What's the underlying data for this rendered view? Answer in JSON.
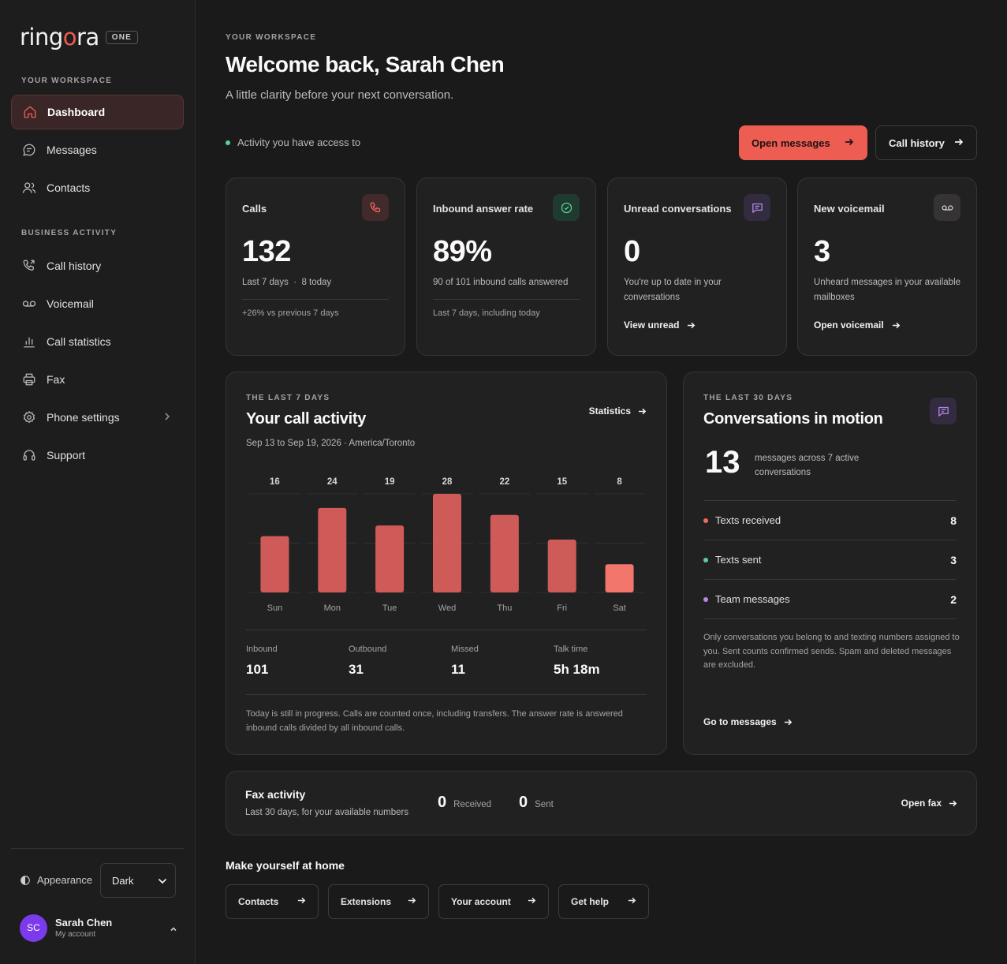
{
  "brand": {
    "name_prefix": "ring",
    "name_o": "o",
    "name_suffix": "ra",
    "badge": "ONE",
    "accent": "#ed5d52"
  },
  "sidebar": {
    "section_workspace": "YOUR WORKSPACE",
    "section_business": "BUSINESS ACTIVITY",
    "items": [
      {
        "label": "Dashboard",
        "icon": "home-icon",
        "active": true
      },
      {
        "label": "Messages",
        "icon": "chat-icon"
      },
      {
        "label": "Contacts",
        "icon": "people-icon"
      },
      {
        "label": "Call history",
        "icon": "phone-history-icon"
      },
      {
        "label": "Voicemail",
        "icon": "voicemail-icon"
      },
      {
        "label": "Call statistics",
        "icon": "bar-chart-icon"
      },
      {
        "label": "Fax",
        "icon": "printer-icon"
      },
      {
        "label": "Phone settings",
        "icon": "gear-icon"
      },
      {
        "label": "Support",
        "icon": "headset-icon"
      }
    ],
    "appearance_label": "Appearance",
    "appearance_value": "Dark",
    "user": {
      "initials": "SC",
      "name": "Sarah Chen",
      "sub": "My account"
    }
  },
  "header": {
    "eyebrow": "YOUR WORKSPACE",
    "title": "Welcome back, Sarah Chen",
    "subtitle": "A little clarity before your next conversation.",
    "access_note": "Activity you have access to",
    "primary_button": "Open messages",
    "secondary_button": "Call history"
  },
  "stats": [
    {
      "label": "Calls",
      "value": "132",
      "sub": "Last 7 days",
      "sub2": "8 today",
      "foot": "+26% vs previous 7 days",
      "icon": "phone-icon"
    },
    {
      "label": "Inbound answer rate",
      "value": "89%",
      "sub": "90 of 101 inbound calls answered",
      "foot": "Last 7 days, including today",
      "icon": "check-circle-icon"
    },
    {
      "label": "Unread conversations",
      "value": "0",
      "sub": "You're up to date in your conversations",
      "link": "View unread",
      "icon": "chat-icon"
    },
    {
      "label": "New voicemail",
      "value": "3",
      "sub": "Unheard messages in your available mailboxes",
      "link": "Open voicemail",
      "icon": "voicemail-icon"
    }
  ],
  "activity": {
    "eyebrow": "THE LAST 7 DAYS",
    "title": "Your call activity",
    "range": "Sep 13 to Sep 19, 2026 · America/Toronto",
    "link": "Statistics",
    "metrics": [
      {
        "label": "Inbound",
        "value": "101"
      },
      {
        "label": "Outbound",
        "value": "31"
      },
      {
        "label": "Missed",
        "value": "11"
      },
      {
        "label": "Talk time",
        "value": "5h 18m"
      }
    ],
    "note": "Today is still in progress. Calls are counted once, including transfers. The answer rate is answered inbound calls divided by all inbound calls."
  },
  "chart_data": {
    "type": "bar",
    "categories": [
      "Sun",
      "Mon",
      "Tue",
      "Wed",
      "Thu",
      "Fri",
      "Sat"
    ],
    "values": [
      16,
      24,
      19,
      28,
      22,
      15,
      8
    ],
    "highlight_index": 6,
    "ylim": [
      0,
      28
    ],
    "grid": true,
    "colors": {
      "bar": "#cf5b58",
      "today": "#f2766c",
      "grid": "#302e2f"
    }
  },
  "conversations": {
    "eyebrow": "THE LAST 30 DAYS",
    "title": "Conversations in motion",
    "count": "13",
    "count_sub": "messages across 7 active conversations",
    "rows": [
      {
        "label": "Texts received",
        "value": "8",
        "color": "#ef6a5f"
      },
      {
        "label": "Texts sent",
        "value": "3",
        "color": "#5fcf9a"
      },
      {
        "label": "Team messages",
        "value": "2",
        "color": "#b48ae6"
      }
    ],
    "note": "Only conversations you belong to and texting numbers assigned to you. Sent counts confirmed sends. Spam and deleted messages are excluded.",
    "link": "Go to messages"
  },
  "fax": {
    "title": "Fax activity",
    "sub": "Last 30 days, for your available numbers",
    "received": "0",
    "received_label": "Received",
    "sent": "0",
    "sent_label": "Sent",
    "link": "Open fax"
  },
  "home": {
    "title": "Make yourself at home",
    "buttons": [
      "Contacts",
      "Extensions",
      "Your account",
      "Get help"
    ]
  }
}
